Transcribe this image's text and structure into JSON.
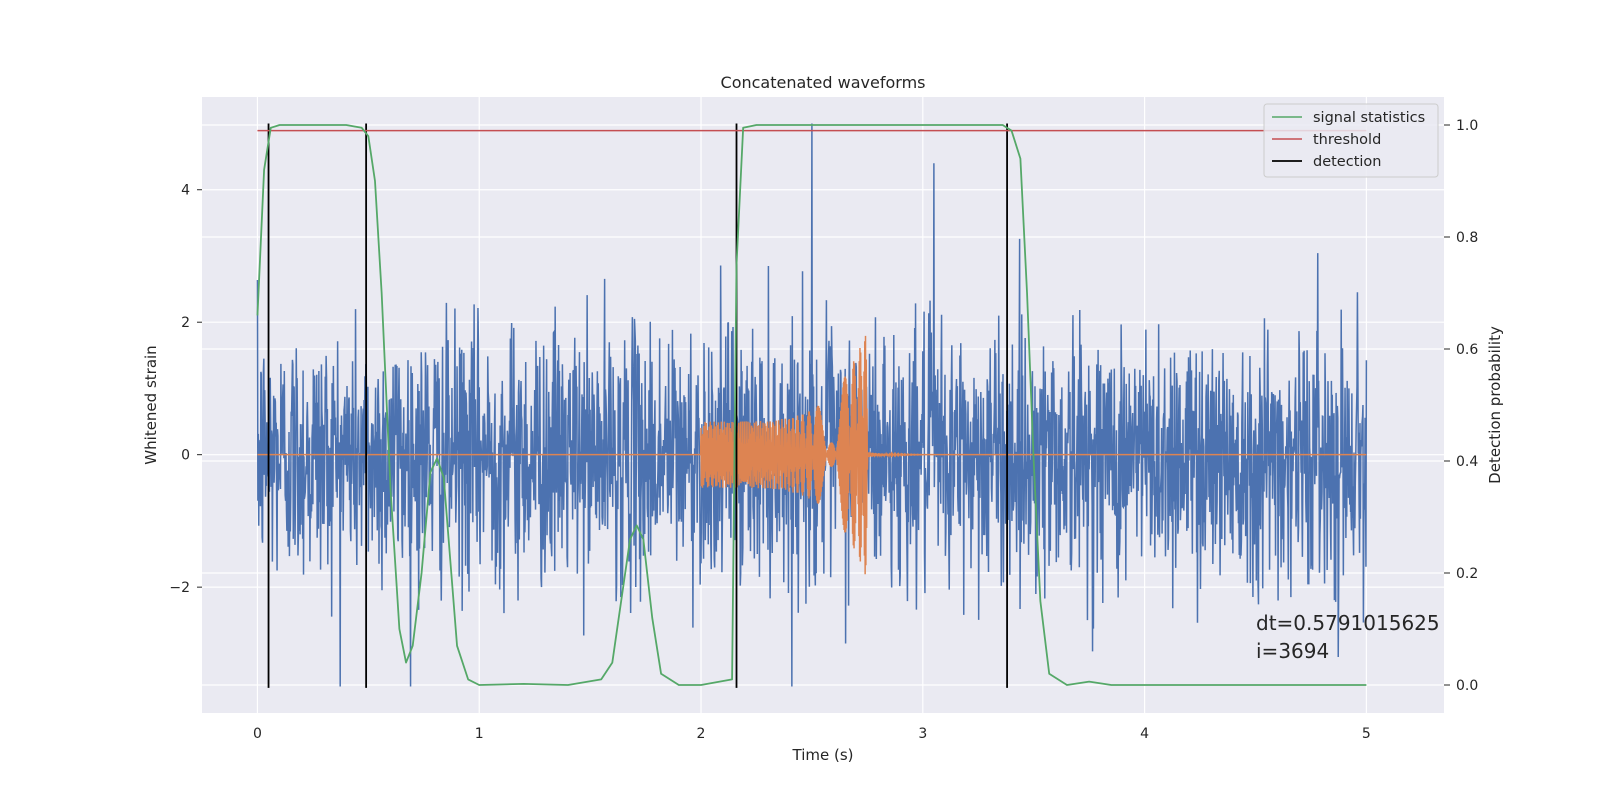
{
  "chart_data": {
    "type": "line",
    "title": "Concatenated waveforms",
    "xlabel": "Time (s)",
    "ylabel_left": "Whitened strain",
    "ylabel_right": "Detection probability",
    "xlim": [
      -0.25,
      5.35
    ],
    "ylim_left": [
      -3.9,
      5.4
    ],
    "ylim_right": [
      -0.05,
      1.05
    ],
    "x_ticks": [
      0,
      1,
      2,
      3,
      4,
      5
    ],
    "y_ticks_left": [
      -2,
      0,
      2,
      4
    ],
    "y_ticks_right": [
      0.0,
      0.2,
      0.4,
      0.6,
      0.8,
      1.0
    ],
    "grid": true,
    "legend_position": "top-right",
    "annotation": "dt=0.5791015625\n i=3694",
    "series": [
      {
        "name": "",
        "axis": "left",
        "color": "#4c72b0",
        "kind": "noise",
        "x_range": [
          0,
          5
        ],
        "std": 0.95,
        "max": 5.0,
        "min": -3.5
      },
      {
        "name": "",
        "axis": "left",
        "color": "#dd8452",
        "kind": "chirp",
        "x_range": [
          0,
          5
        ],
        "chirp_start": 2.0,
        "chirp_end": 2.75,
        "amp_start": 0.5,
        "amp_peak": 1.9
      },
      {
        "name": "signal statistics",
        "axis": "right",
        "color": "#55a868",
        "x": [
          0,
          0.03,
          0.06,
          0.1,
          0.2,
          0.3,
          0.4,
          0.47,
          0.5,
          0.53,
          0.56,
          0.6,
          0.64,
          0.67,
          0.7,
          0.74,
          0.78,
          0.81,
          0.84,
          0.87,
          0.9,
          0.95,
          1.0,
          1.2,
          1.4,
          1.55,
          1.6,
          1.64,
          1.68,
          1.71,
          1.74,
          1.78,
          1.82,
          1.9,
          2.0,
          2.14,
          2.16,
          2.19,
          2.25,
          2.5,
          3.0,
          3.36,
          3.4,
          3.44,
          3.47,
          3.5,
          3.53,
          3.57,
          3.65,
          3.75,
          3.85,
          4.0,
          5.0
        ],
        "values": [
          0.66,
          0.92,
          0.995,
          1.0,
          1.0,
          1.0,
          1.0,
          0.995,
          0.98,
          0.9,
          0.7,
          0.35,
          0.1,
          0.04,
          0.07,
          0.2,
          0.38,
          0.405,
          0.37,
          0.22,
          0.07,
          0.01,
          0.0,
          0.002,
          0.0,
          0.01,
          0.04,
          0.15,
          0.26,
          0.285,
          0.26,
          0.12,
          0.02,
          0.0,
          0.0,
          0.01,
          0.75,
          0.995,
          1.0,
          1.0,
          1.0,
          1.0,
          0.99,
          0.94,
          0.7,
          0.4,
          0.15,
          0.02,
          0.0,
          0.006,
          0.0,
          0.0,
          0.0
        ]
      },
      {
        "name": "threshold",
        "axis": "right",
        "color": "#c44e52",
        "x": [
          0,
          5
        ],
        "values": [
          0.99,
          0.99
        ]
      },
      {
        "name": "detection",
        "axis": "left",
        "color": "#000000",
        "kind": "vlines",
        "x": [
          0.05,
          0.49,
          2.16,
          3.38
        ],
        "ymin": -3.52,
        "ymax": 5.0
      }
    ]
  }
}
